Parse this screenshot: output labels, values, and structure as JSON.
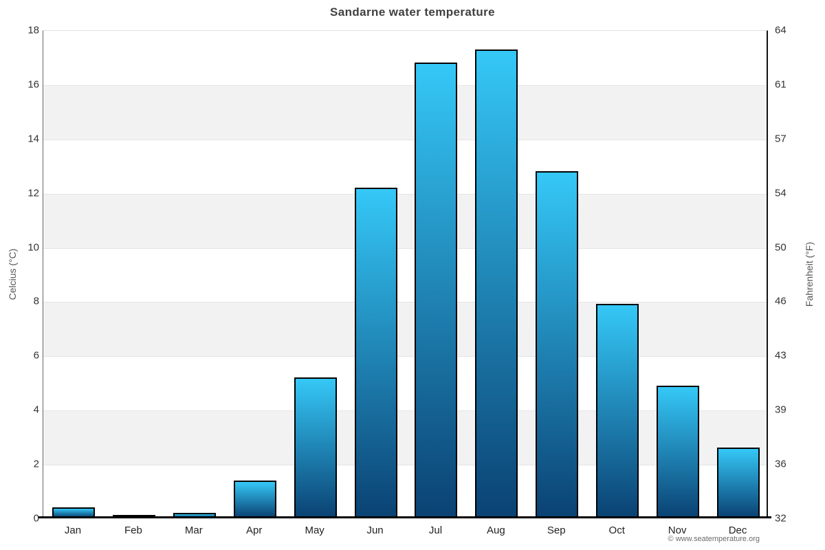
{
  "title": "Sandarne water temperature",
  "footer": {
    "credit": "© www.seatemperature.org"
  },
  "chart_data": {
    "type": "bar",
    "title": "Sandarne water temperature",
    "categories": [
      "Jan",
      "Feb",
      "Mar",
      "Apr",
      "May",
      "Jun",
      "Jul",
      "Aug",
      "Sep",
      "Oct",
      "Nov",
      "Dec"
    ],
    "values": [
      0.4,
      0.1,
      0.2,
      1.4,
      5.2,
      12.2,
      16.8,
      17.3,
      12.8,
      7.9,
      4.9,
      2.6
    ],
    "ylabel_left": "Celcius (°C)",
    "ylabel_right": "Fahrenheit (°F)",
    "yticks_celsius": [
      0,
      2,
      4,
      6,
      8,
      10,
      12,
      14,
      16,
      18
    ],
    "yticks_fahrenheit": [
      32,
      36,
      39,
      43,
      46,
      50,
      54,
      57,
      61,
      64
    ],
    "ylim": [
      0,
      18
    ],
    "grid": "horizontal-bands",
    "legend": "none",
    "colors": {
      "bar_top": "#35c8f7",
      "bar_bottom": "#0a4273",
      "bar_border": "#010203",
      "band_gray": "#f2f2f2",
      "gridline": "#e4e4e4",
      "axis_line": "#000000"
    }
  }
}
